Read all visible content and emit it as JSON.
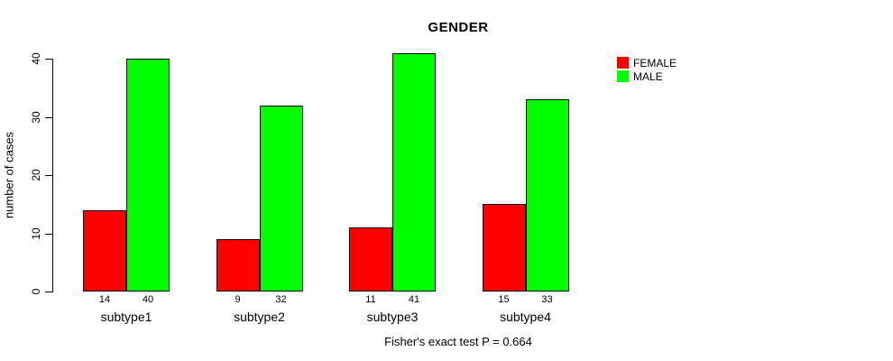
{
  "chart_data": {
    "type": "bar",
    "title": "GENDER",
    "ylabel": "number of cases",
    "xlabel": "",
    "caption": "Fisher's exact test P = 0.664",
    "categories": [
      "subtype1",
      "subtype2",
      "subtype3",
      "subtype4"
    ],
    "series": [
      {
        "name": "FEMALE",
        "color": "#ff0000",
        "values": [
          14,
          9,
          11,
          15
        ]
      },
      {
        "name": "MALE",
        "color": "#00ff00",
        "values": [
          40,
          32,
          41,
          33
        ]
      }
    ],
    "ylim": [
      0,
      40
    ],
    "yticks": [
      0,
      10,
      20,
      30,
      40
    ],
    "show_value_labels": true,
    "grid": false,
    "legend_position": "top-right",
    "background": "#ffffff",
    "bar_border_color": "#000000"
  }
}
